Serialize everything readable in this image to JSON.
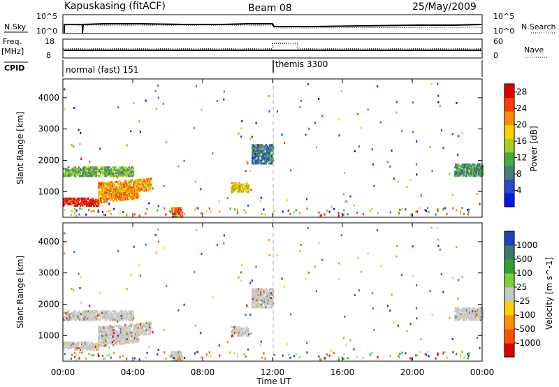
{
  "header": {
    "station": "Kapuskasing (fitACF)",
    "beam": "Beam 08",
    "date": "25/May/2009"
  },
  "strips": {
    "nsky_label": "N.Sky",
    "nsky_ticks": [
      "10^5",
      "10^0"
    ],
    "nsearch_label": "N.Search",
    "nsearch_ticks": [
      "10^5",
      "10^0"
    ],
    "freq_label": "Freq.",
    "freq_unit": "[MHz]",
    "freq_ticks": [
      "18",
      "8"
    ],
    "nave_label": "Nave",
    "nave_ticks": [
      "60",
      "0"
    ],
    "cpid_label": "CPID",
    "cpid_segments": [
      "normal (fast) 151",
      "themis 3300"
    ]
  },
  "x_axis": {
    "label": "Time UT",
    "ticks": [
      "00:00",
      "04:00",
      "08:00",
      "12:00",
      "16:00",
      "20:00",
      "00:00"
    ]
  },
  "power_panel": {
    "ylabel": "Slant Range [km]",
    "yticks": [
      "4000",
      "3000",
      "2000",
      "1000"
    ],
    "colorbar_label": "Power [dB]",
    "colorbar_ticks": [
      "28",
      "24",
      "20",
      "16",
      "12",
      "8",
      "4"
    ],
    "colors": [
      "#0018e8",
      "#2848c8",
      "#4a7a7a",
      "#3fae3a",
      "#a6d01e",
      "#ffd000",
      "#ff8a00",
      "#ff3c00",
      "#e00000"
    ]
  },
  "velocity_panel": {
    "ylabel": "Slant Range [km]",
    "yticks": [
      "4000",
      "3000",
      "2000",
      "1000"
    ],
    "colorbar_label": "Velocity [m s^-1]",
    "colorbar_ticks": [
      "1000",
      "500",
      "100",
      "25",
      "-25",
      "-100",
      "-500",
      "-1000"
    ],
    "colors": [
      "#2040c0",
      "#3a7a6a",
      "#2fa030",
      "#7ad03a",
      "#c8c8c8",
      "#ffd000",
      "#ff9000",
      "#ff5000",
      "#e00000"
    ]
  },
  "chart_data": [
    {
      "type": "line",
      "title": "N.Sky / N.Search",
      "x_range_hours": [
        0,
        24
      ],
      "y_scale": "log",
      "ylim": [
        1,
        100000
      ]
    },
    {
      "type": "line",
      "title": "Freq. / Nave",
      "x": [
        0,
        12,
        12,
        13.3,
        13.3,
        24
      ],
      "freq_mhz": [
        10.5,
        10.5,
        10.5,
        10.5,
        10.5,
        10.5
      ],
      "nave": [
        15,
        15,
        40,
        40,
        15,
        15
      ],
      "ylim_freq": [
        8,
        18
      ],
      "ylim_nave": [
        0,
        60
      ]
    },
    {
      "type": "heatmap",
      "title": "Power [dB]",
      "xlabel": "Time UT",
      "ylabel": "Slant Range [km]",
      "xlim": [
        0,
        24
      ],
      "ylim": [
        180,
        4600
      ],
      "zlim": [
        0,
        30
      ],
      "echo_regions": [
        {
          "t": [
            0.0,
            2.0
          ],
          "range": [
            550,
            800
          ],
          "power": 28
        },
        {
          "t": [
            2.0,
            4.3
          ],
          "range": [
            650,
            1000
          ],
          "power": 22
        },
        {
          "t": [
            0.0,
            4.0
          ],
          "range": [
            1500,
            1800
          ],
          "power": 12
        },
        {
          "t": [
            2.0,
            5.0
          ],
          "range": [
            900,
            1300
          ],
          "power": 20
        },
        {
          "t": [
            9.6,
            10.6
          ],
          "range": [
            1000,
            1300
          ],
          "power": 18
        },
        {
          "t": [
            10.8,
            12.0
          ],
          "range": [
            1900,
            2500
          ],
          "power": 8
        },
        {
          "t": [
            6.2,
            6.8
          ],
          "range": [
            200,
            500
          ],
          "power": 24
        },
        {
          "t": [
            22.4,
            24.0
          ],
          "range": [
            1500,
            1900
          ],
          "power": 10
        }
      ]
    },
    {
      "type": "heatmap",
      "title": "Velocity [m s^-1]",
      "xlabel": "Time UT",
      "ylabel": "Slant Range [km]",
      "xlim": [
        0,
        24
      ],
      "ylim": [
        180,
        4600
      ],
      "zlim": [
        -1000,
        1000
      ]
    }
  ]
}
